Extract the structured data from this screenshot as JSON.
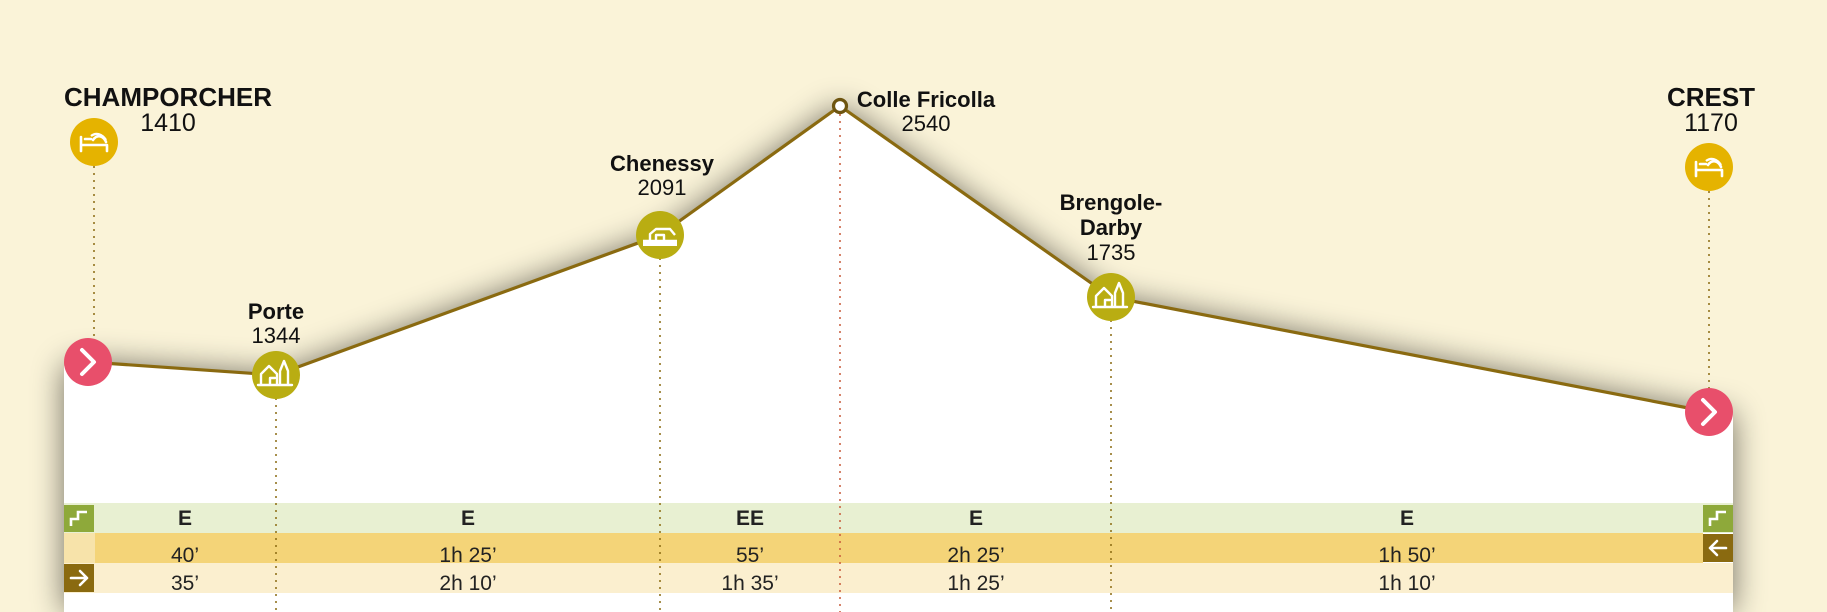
{
  "colors": {
    "background": "#faf3d8",
    "profile_line": "#8a6a10",
    "lodging_icon": "#e5b300",
    "village_icon": "#b9ad12",
    "start_end_marker": "#e84f6b",
    "difficulty_row": "#e8f0d2",
    "time_forward_row": "#f4d478",
    "time_back_row": "#fbefcf",
    "row_icon_green": "#8ea93a",
    "row_icon_brown": "#8a6a10"
  },
  "profile": {
    "waypoints": [
      {
        "name": "CHAMPORCHER",
        "altitude": "1410",
        "icon": "bed-icon",
        "kind": "start"
      },
      {
        "name": "Porte",
        "altitude": "1344",
        "icon": "village-icon",
        "kind": "village"
      },
      {
        "name": "Chenessy",
        "altitude": "2091",
        "icon": "hut-icon",
        "kind": "hut"
      },
      {
        "name": "Colle Fricolla",
        "altitude": "2540",
        "icon": "pass-icon",
        "kind": "pass"
      },
      {
        "name": "Brengole-\nDarby",
        "altitude": "1735",
        "icon": "village-icon",
        "kind": "village"
      },
      {
        "name": "CREST",
        "altitude": "1170",
        "icon": "bed-icon",
        "kind": "end"
      }
    ]
  },
  "segments": [
    {
      "difficulty": "E",
      "time_forward": "40’",
      "time_back": "35’"
    },
    {
      "difficulty": "E",
      "time_forward": "1h 25’",
      "time_back": "2h 10’"
    },
    {
      "difficulty": "EE",
      "time_forward": "55’",
      "time_back": "1h 35’"
    },
    {
      "difficulty": "E",
      "time_forward": "2h 25’",
      "time_back": "1h 25’"
    },
    {
      "difficulty": "E",
      "time_forward": "1h 50’",
      "time_back": "1h 10’"
    }
  ],
  "row_icons": {
    "difficulty_left": "difficulty-icon",
    "difficulty_right": "difficulty-icon",
    "time_forward_right": "arrow-left-icon",
    "time_back_left": "arrow-right-icon"
  }
}
